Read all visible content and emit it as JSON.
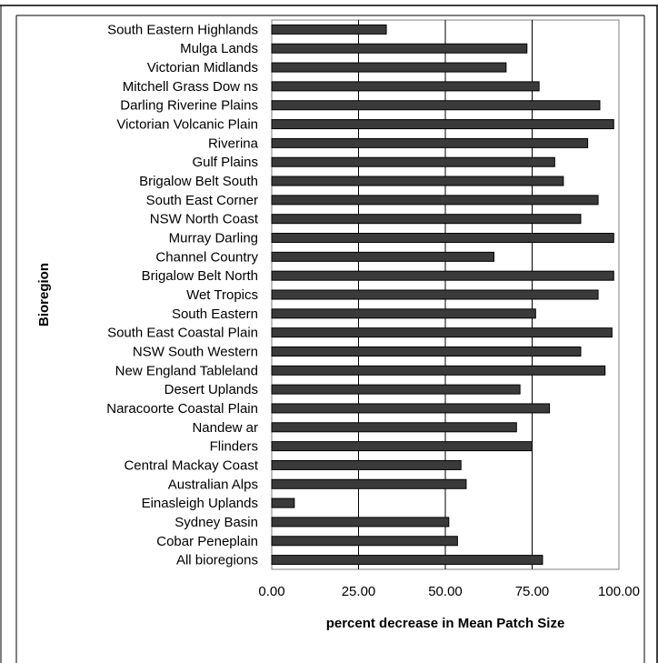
{
  "chart_data": {
    "type": "bar",
    "orientation": "horizontal",
    "title": "",
    "xlabel": "percent decrease in Mean Patch Size",
    "ylabel": "Bioregion",
    "xlim": [
      0,
      100
    ],
    "xticks": [
      0,
      25,
      50,
      75,
      100
    ],
    "xtick_labels": [
      "0.00",
      "25.00",
      "50.00",
      "75.00",
      "100.00"
    ],
    "grid": "vertical major gridlines",
    "legend": "none",
    "bar_color": "#3a3a3a",
    "categories": [
      "South Eastern Highlands",
      "Mulga Lands",
      "Victorian Midlands",
      "Mitchell Grass Dow ns",
      "Darling Riverine Plains",
      "Victorian Volcanic Plain",
      "Riverina",
      "Gulf Plains",
      "Brigalow  Belt South",
      "South East Corner",
      "NSW North Coast",
      "Murray Darling",
      "Channel Country",
      "Brigalow  Belt North",
      "Wet Tropics",
      "South Eastern",
      "South East Coastal Plain",
      "NSW South Western",
      "New  England Tableland",
      "Desert Uplands",
      "Naracoorte Coastal Plain",
      "Nandew ar",
      "Flinders",
      "Central Mackay Coast",
      "Australian Alps",
      "Einasleigh Uplands",
      "Sydney Basin",
      "Cobar Peneplain",
      "All bioregions"
    ],
    "values": [
      33,
      73.5,
      67.5,
      77,
      94.5,
      98.5,
      91,
      81.5,
      84,
      94,
      89,
      98.5,
      64,
      98.5,
      94,
      76,
      98,
      89,
      96,
      71.5,
      80,
      70.5,
      75,
      54.5,
      56,
      6.5,
      51,
      53.5,
      78
    ]
  }
}
